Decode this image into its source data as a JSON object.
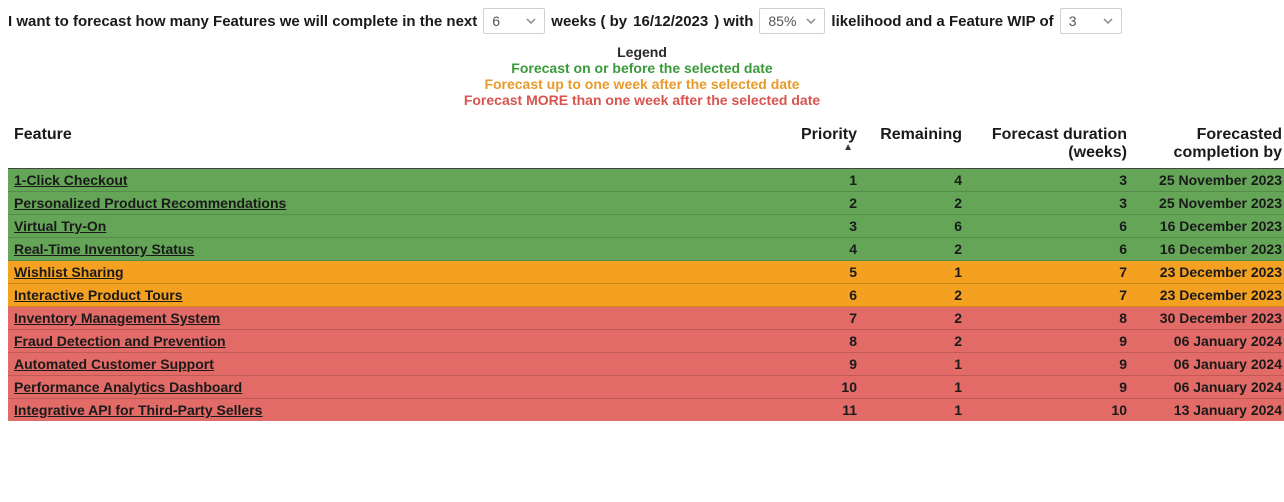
{
  "sentence": {
    "part1": "I want to forecast how many Features we will complete in the next",
    "weeks_value": "6",
    "part2a": "weeks ( by",
    "date": "16/12/2023",
    "part2b": ")  with",
    "likelihood_value": "85%",
    "part3": "likelihood and a Feature WIP of",
    "wip_value": "3"
  },
  "legend": {
    "title": "Legend",
    "green": "Forecast on or before the selected date",
    "orange": "Forecast up to one week after the selected date",
    "red": "Forecast MORE than one week after the selected date"
  },
  "columns": {
    "feature": "Feature",
    "priority": "Priority",
    "remaining": "Remaining",
    "duration": "Forecast duration (weeks)",
    "date": "Forecasted completion by"
  },
  "colors": {
    "green": "#64a557",
    "orange": "#f4a020",
    "red": "#e26a67",
    "legend_green": "#3a9a3a",
    "legend_orange": "#e89a2a",
    "legend_red": "#d9534f"
  },
  "rows": [
    {
      "feature": "1-Click Checkout",
      "priority": "1",
      "remaining": "4",
      "duration": "3",
      "date": "25 November 2023",
      "status": "green"
    },
    {
      "feature": "Personalized Product Recommendations",
      "priority": "2",
      "remaining": "2",
      "duration": "3",
      "date": "25 November 2023",
      "status": "green"
    },
    {
      "feature": "Virtual Try-On",
      "priority": "3",
      "remaining": "6",
      "duration": "6",
      "date": "16 December 2023",
      "status": "green"
    },
    {
      "feature": "Real-Time Inventory Status",
      "priority": "4",
      "remaining": "2",
      "duration": "6",
      "date": "16 December 2023",
      "status": "green"
    },
    {
      "feature": "Wishlist Sharing",
      "priority": "5",
      "remaining": "1",
      "duration": "7",
      "date": "23 December 2023",
      "status": "orange"
    },
    {
      "feature": "Interactive Product Tours",
      "priority": "6",
      "remaining": "2",
      "duration": "7",
      "date": "23 December 2023",
      "status": "orange"
    },
    {
      "feature": "Inventory Management System",
      "priority": "7",
      "remaining": "2",
      "duration": "8",
      "date": "30 December 2023",
      "status": "red"
    },
    {
      "feature": "Fraud Detection and Prevention",
      "priority": "8",
      "remaining": "2",
      "duration": "9",
      "date": "06 January 2024",
      "status": "red"
    },
    {
      "feature": "Automated Customer Support",
      "priority": "9",
      "remaining": "1",
      "duration": "9",
      "date": "06 January 2024",
      "status": "red"
    },
    {
      "feature": "Performance Analytics Dashboard",
      "priority": "10",
      "remaining": "1",
      "duration": "9",
      "date": "06 January 2024",
      "status": "red"
    },
    {
      "feature": "Integrative API for Third-Party Sellers",
      "priority": "11",
      "remaining": "1",
      "duration": "10",
      "date": "13 January 2024",
      "status": "red"
    }
  ]
}
